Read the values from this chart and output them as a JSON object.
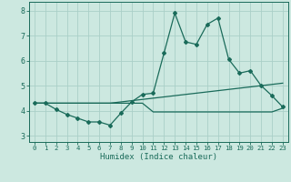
{
  "title": "",
  "xlabel": "Humidex (Indice chaleur)",
  "xlim": [
    -0.5,
    23.5
  ],
  "ylim": [
    2.75,
    8.35
  ],
  "yticks": [
    3,
    4,
    5,
    6,
    7,
    8
  ],
  "xticks": [
    0,
    1,
    2,
    3,
    4,
    5,
    6,
    7,
    8,
    9,
    10,
    11,
    12,
    13,
    14,
    15,
    16,
    17,
    18,
    19,
    20,
    21,
    22,
    23
  ],
  "bg_color": "#cce8e0",
  "grid_color": "#aacfc8",
  "line_color": "#1a6b5a",
  "line1_x": [
    0,
    1,
    2,
    3,
    4,
    5,
    6,
    7,
    8,
    9,
    10,
    11,
    12,
    13,
    14,
    15,
    16,
    17,
    18,
    19,
    20,
    21,
    22,
    23
  ],
  "line1_y": [
    4.3,
    4.3,
    4.05,
    3.85,
    3.7,
    3.55,
    3.55,
    3.42,
    3.9,
    4.35,
    4.65,
    4.7,
    6.3,
    7.9,
    6.75,
    6.65,
    7.45,
    7.7,
    6.05,
    5.5,
    5.6,
    5.0,
    4.6,
    4.15
  ],
  "line2_x": [
    0,
    1,
    2,
    3,
    4,
    5,
    6,
    7,
    8,
    9,
    10,
    11,
    12,
    13,
    14,
    15,
    16,
    17,
    18,
    19,
    20,
    21,
    22,
    23
  ],
  "line2_y": [
    4.3,
    4.3,
    4.3,
    4.3,
    4.3,
    4.3,
    4.3,
    4.3,
    4.35,
    4.4,
    4.45,
    4.5,
    4.55,
    4.6,
    4.65,
    4.7,
    4.75,
    4.8,
    4.85,
    4.9,
    4.95,
    5.0,
    5.05,
    5.1
  ],
  "line3_x": [
    0,
    1,
    2,
    3,
    4,
    5,
    6,
    7,
    8,
    9,
    10,
    11,
    12,
    13,
    14,
    15,
    16,
    17,
    18,
    19,
    20,
    21,
    22,
    23
  ],
  "line3_y": [
    4.3,
    4.3,
    4.3,
    4.3,
    4.3,
    4.3,
    4.3,
    4.3,
    4.3,
    4.3,
    4.3,
    3.95,
    3.95,
    3.95,
    3.95,
    3.95,
    3.95,
    3.95,
    3.95,
    3.95,
    3.95,
    3.95,
    3.95,
    4.1
  ]
}
